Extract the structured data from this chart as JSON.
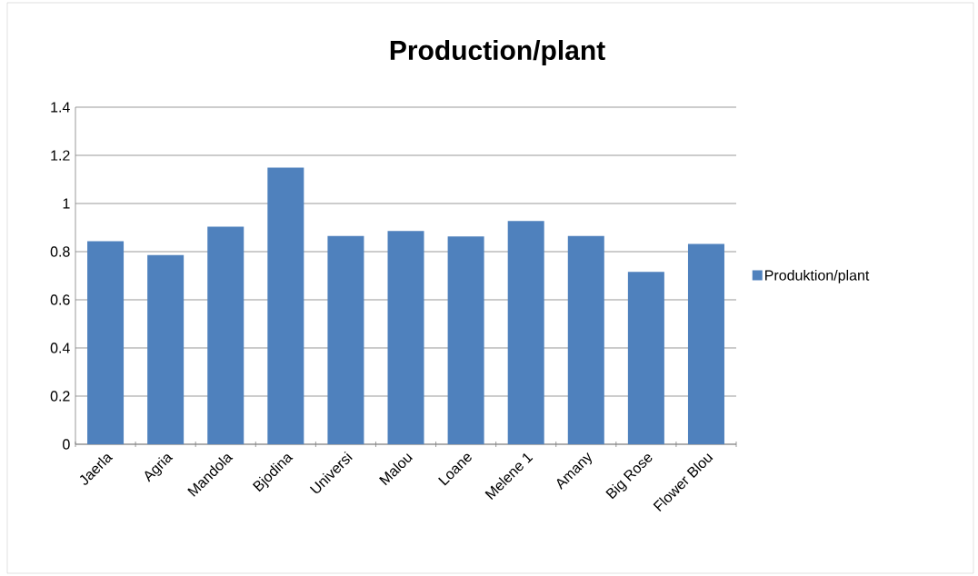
{
  "chart_data": {
    "type": "bar",
    "title": "Production/plant",
    "categories": [
      "Jaerla",
      "Agria",
      "Mandola",
      "Bjodina",
      "Universi",
      "Malou",
      "Loane",
      "Melene 1",
      "Amany",
      "Big Rose",
      "Flower Blou"
    ],
    "series": [
      {
        "name": "Produktion/plant",
        "color": "#4f81bd",
        "values": [
          0.843,
          0.786,
          0.904,
          1.149,
          0.865,
          0.886,
          0.863,
          0.927,
          0.865,
          0.716,
          0.832
        ]
      }
    ],
    "ylim": [
      0,
      1.4
    ],
    "yticks": [
      0,
      0.2,
      0.4,
      0.6,
      0.8,
      1,
      1.2,
      1.4
    ],
    "grid": "y",
    "legend": "right"
  }
}
